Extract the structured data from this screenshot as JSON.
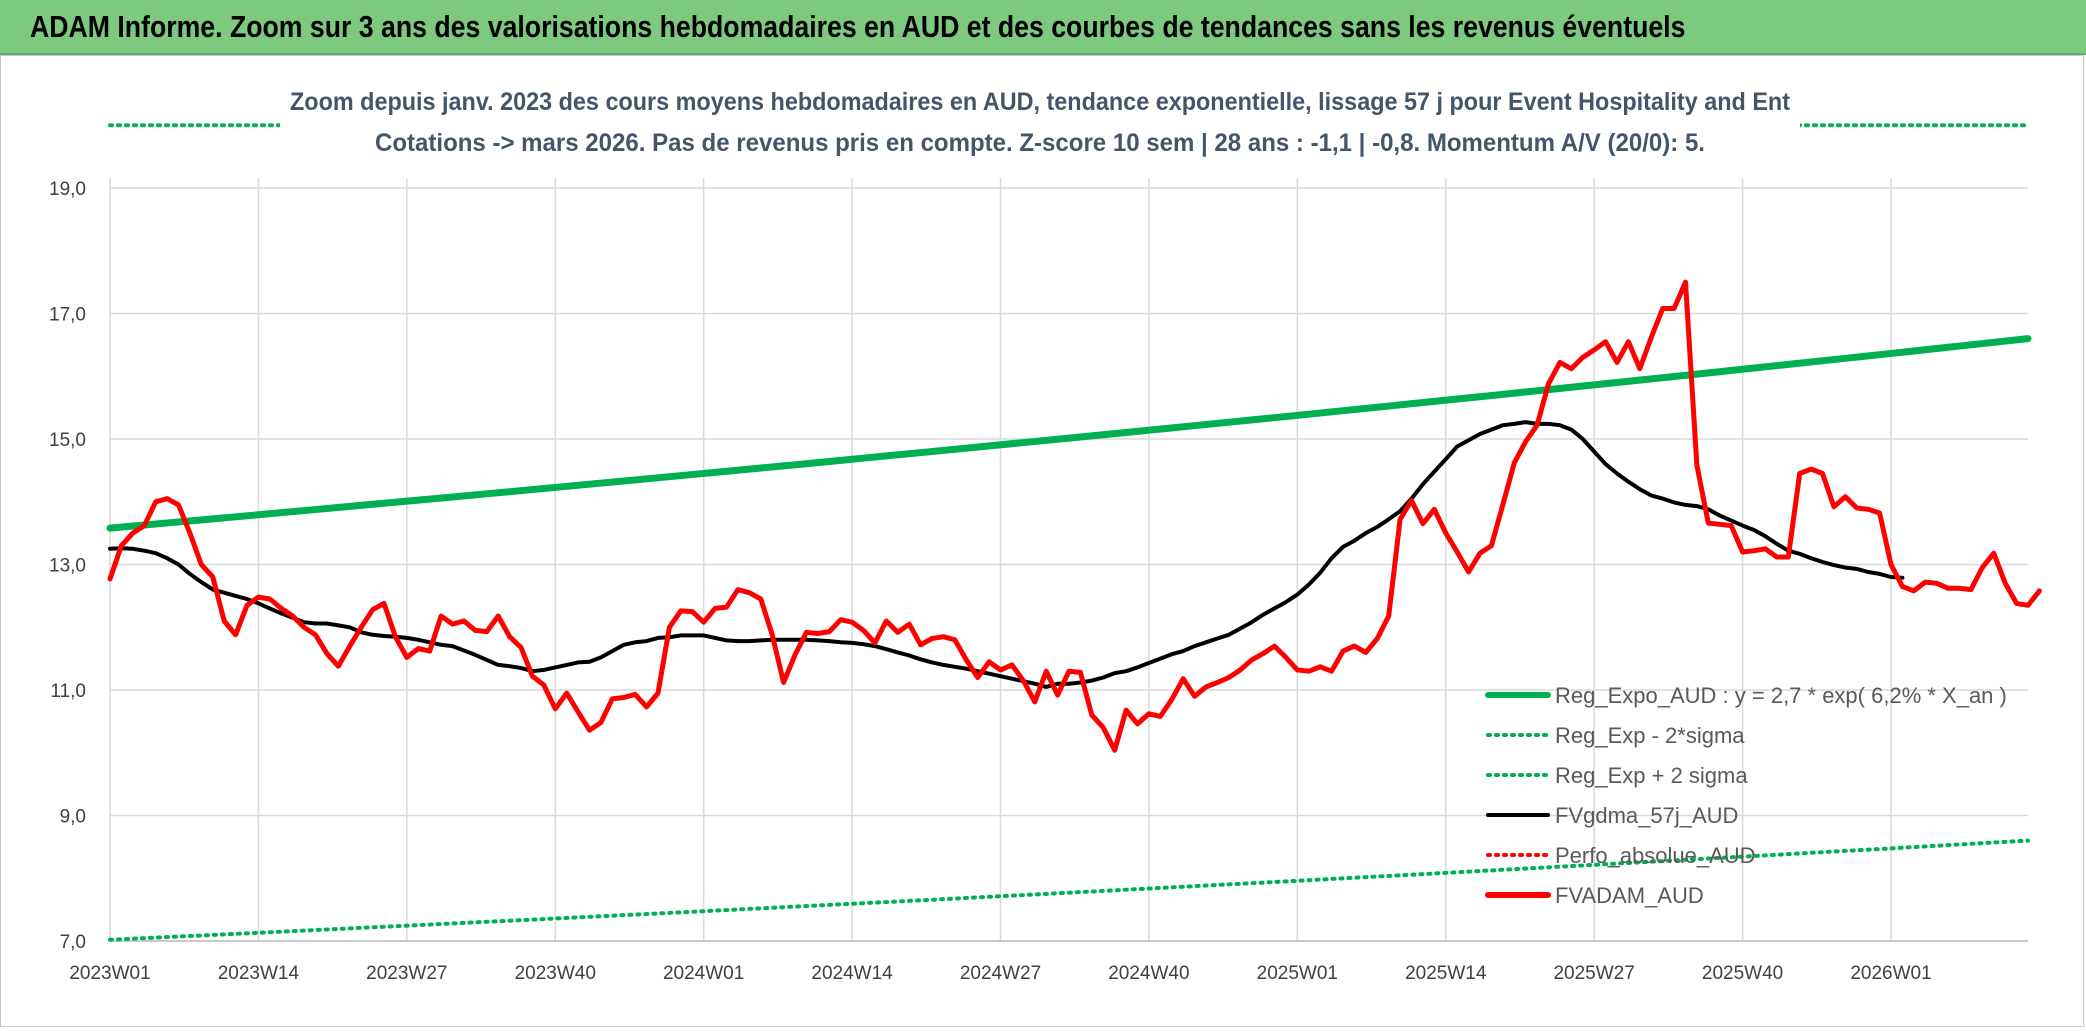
{
  "header": {
    "title": "ADAM Informe. Zoom sur 3 ans des valorisations hebdomadaires en AUD et des courbes de tendances sans les revenus éventuels"
  },
  "chart_data": {
    "type": "line",
    "subtitle_line1": "Zoom depuis janv. 2023 des cours moyens hebdomadaires en AUD, tendance exponentielle, lissage 57 j pour Event Hospitality and Ent",
    "subtitle_line2": "Cotations -> mars 2026. Pas de revenus pris en compte. Z-score 10 sem | 28 ans : -1,1 | -0,8. Momentum A/V (20/0): 5.",
    "ylim": [
      7,
      19
    ],
    "yticks": [
      7,
      9,
      11,
      13,
      15,
      17,
      19
    ],
    "ytick_labels": [
      "7,0",
      "9,0",
      "11,0",
      "13,0",
      "15,0",
      "17,0",
      "19,0"
    ],
    "xticks": [
      0,
      13,
      26,
      39,
      52,
      65,
      78,
      91,
      104,
      117,
      130,
      143,
      156
    ],
    "xtick_labels": [
      "2023W01",
      "2023W14",
      "2023W27",
      "2023W40",
      "2024W01",
      "2024W14",
      "2024W27",
      "2024W40",
      "2025W01",
      "2025W14",
      "2025W27",
      "2025W40",
      "2026W01"
    ],
    "xlim": [
      0,
      168
    ],
    "grid": true,
    "legend_position": "bottom-right",
    "series": [
      {
        "name": "Reg_Expo_AUD : y = 2,7 * exp( 6,2% *  X_an )",
        "color": "#00b050",
        "style": "solid",
        "formula": {
          "start": 13.58,
          "end": 16.6
        }
      },
      {
        "name": "Reg_Exp - 2*sigma",
        "color": "#00b050",
        "style": "dotted",
        "formula": {
          "start": 7.02,
          "end": 8.6
        }
      },
      {
        "name": "Reg_Exp + 2 sigma",
        "color": "#00b050",
        "style": "dotted",
        "formula": {
          "start": 20.0,
          "end": 20.0
        }
      },
      {
        "name": "FVgdma_57j_AUD",
        "color": "#000000",
        "style": "solid",
        "values": [
          13.25,
          13.26,
          13.25,
          13.22,
          13.18,
          13.1,
          13.0,
          12.85,
          12.72,
          12.6,
          12.55,
          12.5,
          12.45,
          12.38,
          12.3,
          12.22,
          12.15,
          12.08,
          12.06,
          12.06,
          12.03,
          12.0,
          11.92,
          11.88,
          11.86,
          11.85,
          11.83,
          11.8,
          11.76,
          11.72,
          11.7,
          11.63,
          11.56,
          11.48,
          11.4,
          11.38,
          11.35,
          11.3,
          11.32,
          11.36,
          11.4,
          11.44,
          11.45,
          11.52,
          11.62,
          11.72,
          11.76,
          11.78,
          11.83,
          11.84,
          11.87,
          11.87,
          11.87,
          11.83,
          11.79,
          11.78,
          11.78,
          11.79,
          11.8,
          11.8,
          11.8,
          11.8,
          11.79,
          11.78,
          11.76,
          11.75,
          11.73,
          11.7,
          11.65,
          11.6,
          11.55,
          11.49,
          11.44,
          11.4,
          11.37,
          11.34,
          11.3,
          11.26,
          11.22,
          11.18,
          11.14,
          11.1,
          11.05,
          11.1,
          11.1,
          11.12,
          11.15,
          11.2,
          11.27,
          11.3,
          11.36,
          11.43,
          11.5,
          11.57,
          11.62,
          11.7,
          11.76,
          11.82,
          11.88,
          11.98,
          12.08,
          12.2,
          12.3,
          12.4,
          12.52,
          12.68,
          12.87,
          13.1,
          13.28,
          13.38,
          13.5,
          13.6,
          13.72,
          13.85,
          14.05,
          14.28,
          14.48,
          14.68,
          14.88,
          14.98,
          15.08,
          15.15,
          15.22,
          15.24,
          15.27,
          15.24,
          15.24,
          15.22,
          15.15,
          15.0,
          14.8,
          14.6,
          14.45,
          14.32,
          14.2,
          14.1,
          14.05,
          13.99,
          13.95,
          13.93,
          13.88,
          13.78,
          13.7,
          13.62,
          13.55,
          13.45,
          13.33,
          13.22,
          13.17,
          13.1,
          13.04,
          12.99,
          12.95,
          12.93,
          12.88,
          12.85,
          12.8,
          12.79
        ]
      },
      {
        "name": "Perfo_absolue_AUD",
        "color": "#ff0000",
        "style": "dotted",
        "values": []
      },
      {
        "name": "FVADAM_AUD",
        "color": "#ff0000",
        "style": "solid",
        "values": [
          12.77,
          13.3,
          13.5,
          13.62,
          14.0,
          14.05,
          13.95,
          13.5,
          13.0,
          12.8,
          12.1,
          11.88,
          12.35,
          12.48,
          12.45,
          12.3,
          12.18,
          12.0,
          11.88,
          11.58,
          11.38,
          11.7,
          12.0,
          12.28,
          12.38,
          11.85,
          11.52,
          11.66,
          11.62,
          12.18,
          12.05,
          12.1,
          11.95,
          11.93,
          12.18,
          11.85,
          11.68,
          11.22,
          11.08,
          10.7,
          10.95,
          10.65,
          10.36,
          10.48,
          10.86,
          10.88,
          10.93,
          10.73,
          10.95,
          12.0,
          12.26,
          12.25,
          12.08,
          12.3,
          12.32,
          12.6,
          12.55,
          12.45,
          11.88,
          11.12,
          11.56,
          11.92,
          11.9,
          11.93,
          12.12,
          12.08,
          11.95,
          11.75,
          12.1,
          11.92,
          12.05,
          11.72,
          11.82,
          11.85,
          11.8,
          11.48,
          11.2,
          11.45,
          11.32,
          11.4,
          11.15,
          10.81,
          11.3,
          10.92,
          11.3,
          11.28,
          10.6,
          10.4,
          10.04,
          10.68,
          10.46,
          10.62,
          10.58,
          10.85,
          11.18,
          10.9,
          11.05,
          11.12,
          11.2,
          11.32,
          11.48,
          11.58,
          11.7,
          11.52,
          11.32,
          11.3,
          11.37,
          11.3,
          11.62,
          11.7,
          11.6,
          11.82,
          12.18,
          13.72,
          14.02,
          13.65,
          13.88,
          13.5,
          13.2,
          12.88,
          13.18,
          13.3,
          13.95,
          14.62,
          14.96,
          15.22,
          15.88,
          16.22,
          16.12,
          16.3,
          16.42,
          16.55,
          16.22,
          16.55,
          16.12,
          16.62,
          17.08,
          17.08,
          17.5,
          14.58,
          13.66,
          13.64,
          13.62,
          13.2,
          13.22,
          13.25,
          13.12,
          13.12,
          14.45,
          14.52,
          14.45,
          13.92,
          14.08,
          13.9,
          13.88,
          13.82,
          13.0,
          12.65,
          12.58,
          12.72,
          12.7,
          12.62,
          12.62,
          12.6,
          12.95,
          13.18,
          12.7,
          12.38,
          12.35,
          12.58
        ]
      }
    ]
  },
  "colors": {
    "header_bg": "#7dc97f",
    "subtitle": "#44546a",
    "trend": "#00b050",
    "price": "#ff0000",
    "moving_average": "#000000"
  }
}
